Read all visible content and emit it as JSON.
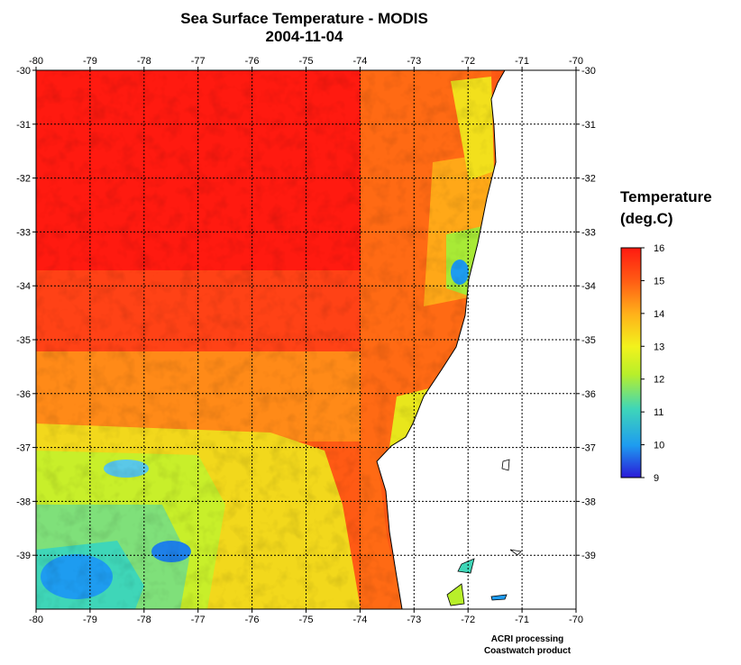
{
  "title": {
    "line1": "Sea Surface Temperature - MODIS",
    "line2": "2004-11-04"
  },
  "map": {
    "longitude_ticks": [
      "-80",
      "-79",
      "-78",
      "-77",
      "-76",
      "-75",
      "-74",
      "-73",
      "-72",
      "-71",
      "-70"
    ],
    "latitude_ticks": [
      "-30",
      "-31",
      "-32",
      "-33",
      "-34",
      "-35",
      "-36",
      "-37",
      "-38",
      "-39"
    ],
    "lon_range": [
      -80,
      -70
    ],
    "lat_range": [
      -40,
      -30
    ],
    "gridlines": "dotted"
  },
  "colorbar": {
    "title_line1": "Temperature",
    "title_line2": "(deg.C)",
    "ticks": [
      "16",
      "15",
      "14",
      "13",
      "12",
      "11",
      "10",
      "9"
    ],
    "min": 9,
    "max": 16,
    "colors": [
      "#2a1ad8",
      "#1e9cf0",
      "#3fd6b8",
      "#b8ef2a",
      "#f2f21c",
      "#ffb21a",
      "#ff5a14",
      "#ff1a10"
    ]
  },
  "credit": {
    "line1": "ACRI processing",
    "line2": "Coastwatch product"
  }
}
